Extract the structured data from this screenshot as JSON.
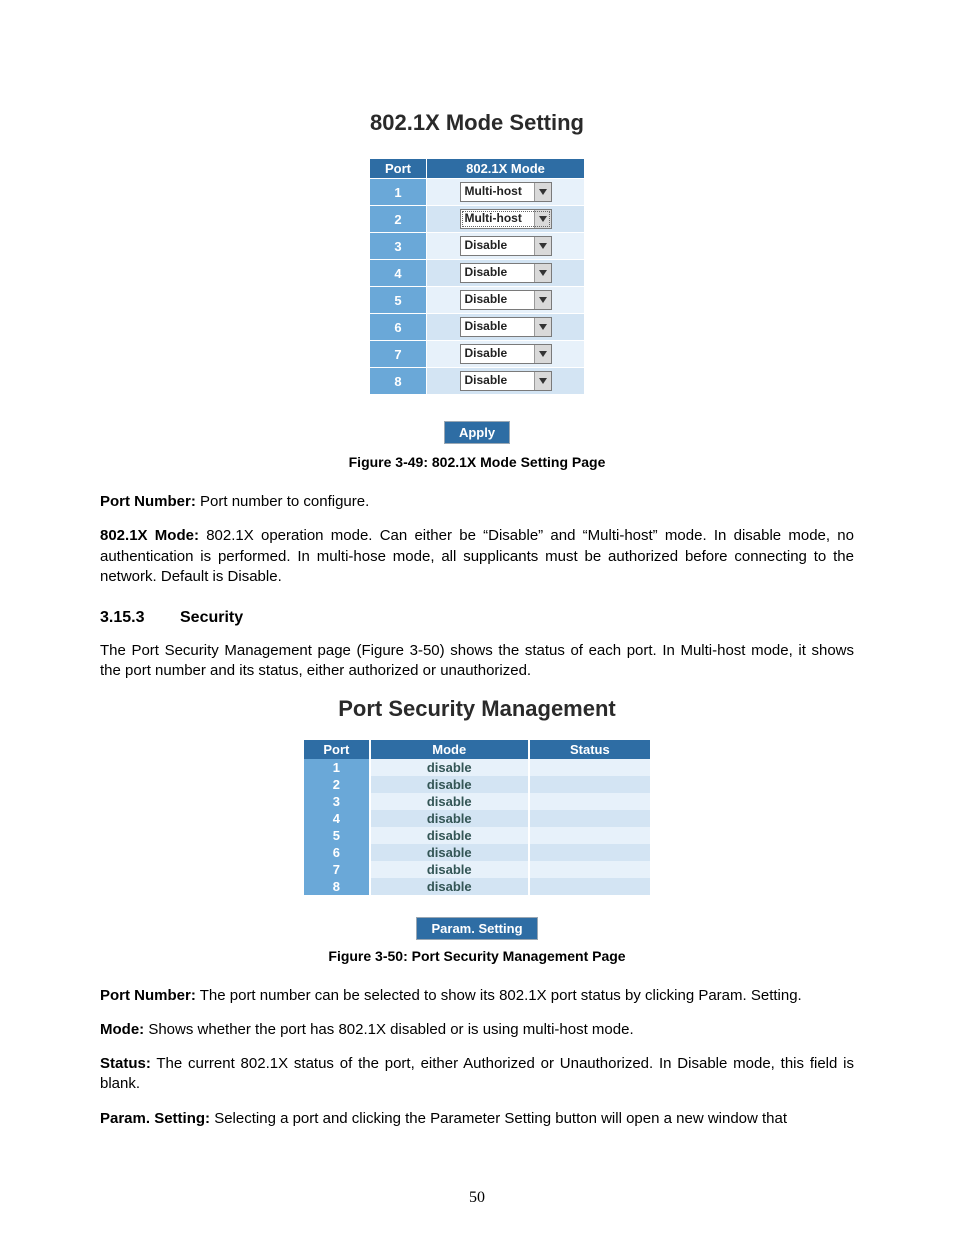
{
  "colors": {
    "header_bg": "#2e6da4",
    "header_fg": "#ffffff",
    "portcol_bg": "#6aa8d8",
    "row_light": "#e7f1fa",
    "row_dark": "#d3e4f3",
    "select_arrow_bg": "#d9d9d9",
    "page_bg": "#ffffff",
    "text": "#000000"
  },
  "typography": {
    "title_fontsize": 22,
    "body_fontsize": 15,
    "table_fontsize": 13,
    "caption_fontsize": 14,
    "section_fontsize": 16
  },
  "fig1": {
    "title": "802.1X Mode Setting",
    "columns": {
      "port": "Port",
      "mode": "802.1X Mode"
    },
    "rows": [
      {
        "port": "1",
        "mode": "Multi-host",
        "dotted": false
      },
      {
        "port": "2",
        "mode": "Multi-host",
        "dotted": true
      },
      {
        "port": "3",
        "mode": "Disable",
        "dotted": false
      },
      {
        "port": "4",
        "mode": "Disable",
        "dotted": false
      },
      {
        "port": "5",
        "mode": "Disable",
        "dotted": false
      },
      {
        "port": "6",
        "mode": "Disable",
        "dotted": false
      },
      {
        "port": "7",
        "mode": "Disable",
        "dotted": false
      },
      {
        "port": "8",
        "mode": "Disable",
        "dotted": false
      }
    ],
    "apply_label": "Apply",
    "caption": "Figure 3-49: 802.1X Mode Setting Page"
  },
  "desc1": {
    "port_number_label": "Port Number:",
    "port_number_text": " Port number to configure.",
    "mode_label": "802.1X Mode:",
    "mode_text": " 802.1X operation mode. Can either be “Disable” and “Multi-host” mode. In disable mode, no authentication is performed. In multi-hose mode, all supplicants must be authorized before connecting to the network. Default is Disable."
  },
  "section": {
    "number": "3.15.3",
    "title": "Security",
    "intro": "The Port Security Management page (Figure 3-50) shows the status of each port. In Multi-host mode, it shows the port number and its status, either authorized or unauthorized."
  },
  "fig2": {
    "title": "Port Security Management",
    "columns": {
      "port": "Port",
      "mode": "Mode",
      "status": "Status"
    },
    "rows": [
      {
        "port": "1",
        "mode": "disable",
        "status": ""
      },
      {
        "port": "2",
        "mode": "disable",
        "status": ""
      },
      {
        "port": "3",
        "mode": "disable",
        "status": ""
      },
      {
        "port": "4",
        "mode": "disable",
        "status": ""
      },
      {
        "port": "5",
        "mode": "disable",
        "status": ""
      },
      {
        "port": "6",
        "mode": "disable",
        "status": ""
      },
      {
        "port": "7",
        "mode": "disable",
        "status": ""
      },
      {
        "port": "8",
        "mode": "disable",
        "status": ""
      }
    ],
    "param_label": "Param. Setting",
    "caption": "Figure 3-50: Port Security Management Page"
  },
  "desc2": {
    "port_number_label": "Port Number:",
    "port_number_text": " The port number can be selected to show its 802.1X port status by clicking Param. Setting.",
    "mode_label": "Mode:",
    "mode_text": " Shows whether the port has 802.1X disabled or is using multi-host mode.",
    "status_label": "Status:",
    "status_text": " The current 802.1X status of the port, either Authorized or Unauthorized. In Disable mode, this field is blank.",
    "param_label": "Param. Setting:",
    "param_text": " Selecting a port and clicking the Parameter Setting button will open a new window that"
  },
  "page_number": "50"
}
